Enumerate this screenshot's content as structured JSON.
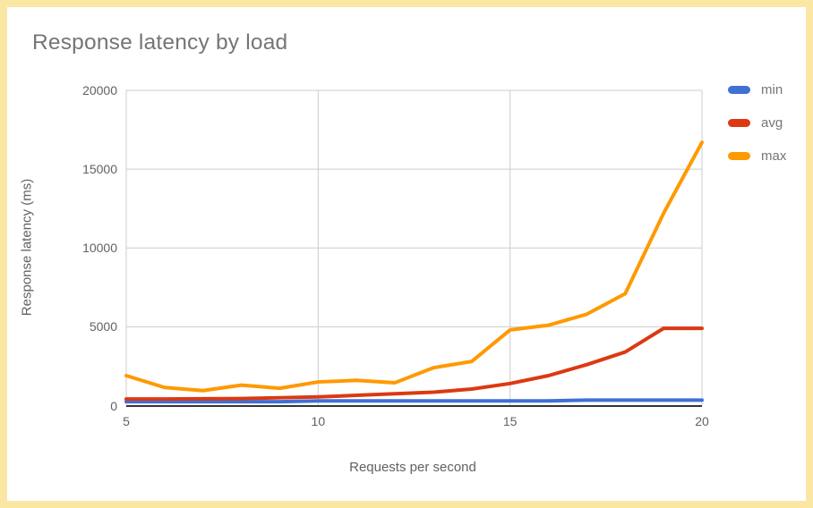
{
  "title": "Response latency by load",
  "colors": {
    "frame": "#FAE7A3",
    "card_background": "#FFFFFF",
    "grid": "#CCCCCC",
    "axis_baseline": "#333333",
    "title_text": "#757575",
    "tick_text": "#616161",
    "legend_text": "#757575"
  },
  "chart_data": {
    "type": "line",
    "title": "Response latency by load",
    "xlabel": "Requests per second",
    "ylabel": "Response latency (ms)",
    "x": [
      5,
      6,
      7,
      8,
      9,
      10,
      11,
      12,
      13,
      14,
      15,
      16,
      17,
      18,
      19,
      20
    ],
    "xlim": [
      5,
      20
    ],
    "ylim": [
      0,
      20000
    ],
    "xticks": [
      5,
      10,
      15,
      20
    ],
    "yticks": [
      0,
      5000,
      10000,
      15000,
      20000
    ],
    "grid": true,
    "legend_position": "right",
    "series": [
      {
        "name": "min",
        "color": "#3E70D5",
        "values": [
          250,
          250,
          250,
          250,
          250,
          300,
          300,
          300,
          300,
          300,
          300,
          300,
          350,
          350,
          350,
          350
        ]
      },
      {
        "name": "avg",
        "color": "#DC3912",
        "values": [
          420,
          420,
          430,
          450,
          500,
          550,
          650,
          750,
          850,
          1050,
          1400,
          1900,
          2600,
          3400,
          4900,
          4900
        ]
      },
      {
        "name": "max",
        "color": "#FF9900",
        "values": [
          1900,
          1150,
          950,
          1300,
          1100,
          1500,
          1600,
          1450,
          2400,
          2800,
          4800,
          5100,
          5800,
          7100,
          12200,
          16700
        ]
      }
    ]
  }
}
